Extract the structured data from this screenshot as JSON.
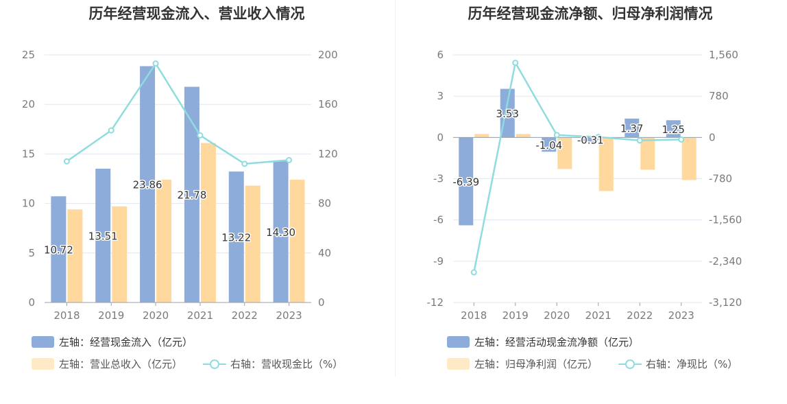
{
  "chart_data": [
    {
      "type": "bar",
      "title": "历年经营现金流入、营业收入情况",
      "categories": [
        "2018",
        "2019",
        "2020",
        "2021",
        "2022",
        "2023"
      ],
      "left_axis": {
        "ticks": [
          "0",
          "5",
          "10",
          "15",
          "20",
          "25"
        ],
        "ylim": [
          0,
          25
        ]
      },
      "right_axis": {
        "ticks": [
          "0",
          "40",
          "80",
          "120",
          "160",
          "200"
        ],
        "ylim": [
          0,
          200
        ]
      },
      "series": [
        {
          "name": "左轴：经营现金流入（亿元）",
          "type": "bar",
          "axis": "left",
          "color": "#8eacd9",
          "values": [
            10.72,
            13.51,
            23.86,
            21.78,
            13.22,
            14.3
          ],
          "labels": [
            "10.72",
            "13.51",
            "23.86",
            "21.78",
            "13.22",
            "14.30"
          ]
        },
        {
          "name": "左轴：营业总收入（亿元）",
          "type": "bar",
          "axis": "left",
          "color": "#ffd89e",
          "values": [
            9.4,
            9.7,
            12.4,
            16.1,
            11.8,
            12.4
          ]
        },
        {
          "name": "右轴：营收现金比（%）",
          "type": "line",
          "axis": "right",
          "color": "#8fdcdf",
          "values": [
            114,
            139,
            193,
            135,
            112,
            115
          ]
        }
      ],
      "legend_position": "bottom-left",
      "grid": true
    },
    {
      "type": "bar",
      "title": "历年经营现金流净额、归母净利润情况",
      "categories": [
        "2018",
        "2019",
        "2020",
        "2021",
        "2022",
        "2023"
      ],
      "left_axis": {
        "ticks": [
          "-12",
          "-9",
          "-6",
          "-3",
          "0",
          "3",
          "6"
        ],
        "ylim": [
          -12,
          6
        ]
      },
      "right_axis": {
        "ticks": [
          "-3,120",
          "-2,340",
          "-1,560",
          "-780",
          "0",
          "780",
          "1,560"
        ],
        "ylim": [
          -3120,
          1560
        ]
      },
      "series": [
        {
          "name": "左轴：经营活动现金流净额（亿元）",
          "type": "bar",
          "axis": "left",
          "color": "#8eacd9",
          "values": [
            -6.39,
            3.53,
            -1.04,
            -0.31,
            1.37,
            1.25
          ],
          "labels": [
            "-6.39",
            "3.53",
            "-1.04",
            "-0.31",
            "1.37",
            "1.25"
          ]
        },
        {
          "name": "左轴：归母净利润（亿元）",
          "type": "bar",
          "axis": "left",
          "color": "#ffd89e",
          "values": [
            0.25,
            0.25,
            -2.3,
            -3.9,
            -2.35,
            -3.1
          ]
        },
        {
          "name": "右轴：净现比（%）",
          "type": "line",
          "axis": "right",
          "color": "#8fdcdf",
          "values": [
            -2550,
            1410,
            45,
            8,
            -58,
            -40
          ]
        }
      ],
      "legend_position": "bottom-left",
      "grid": true
    }
  ]
}
